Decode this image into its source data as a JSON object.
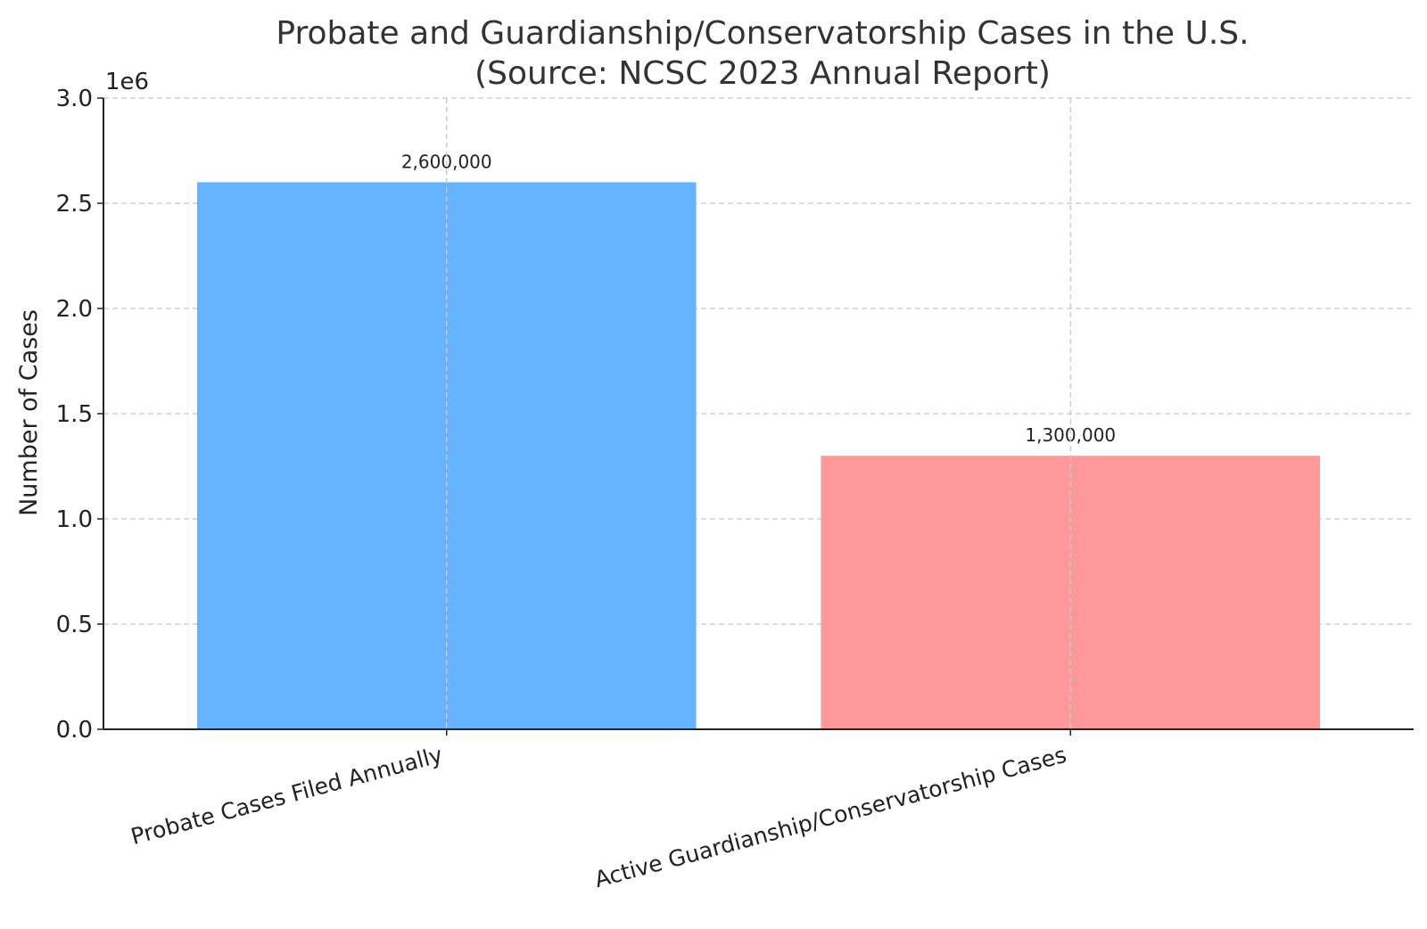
{
  "chart_data": {
    "type": "bar",
    "title": "Probate and Guardianship/Conservatorship Cases in the U.S.",
    "subtitle": "(Source: NCSC 2023 Annual Report)",
    "categories": [
      "Probate Cases Filed Annually",
      "Active Guardianship/Conservatorship Cases"
    ],
    "values": [
      2600000,
      1300000
    ],
    "value_labels": [
      "2,600,000",
      "1,300,000"
    ],
    "colors": [
      "#66b3ff",
      "#ff9999"
    ],
    "xlabel": "",
    "ylabel": "Number of Cases",
    "ylim": [
      0,
      3000000
    ],
    "y_ticks": [
      0,
      500000,
      1000000,
      1500000,
      2000000,
      2500000,
      3000000
    ],
    "y_tick_labels": [
      "0.0",
      "0.5",
      "1.0",
      "1.5",
      "2.0",
      "2.5",
      "3.0"
    ],
    "y_offset_label": "1e6",
    "grid": true,
    "legend": "none"
  }
}
